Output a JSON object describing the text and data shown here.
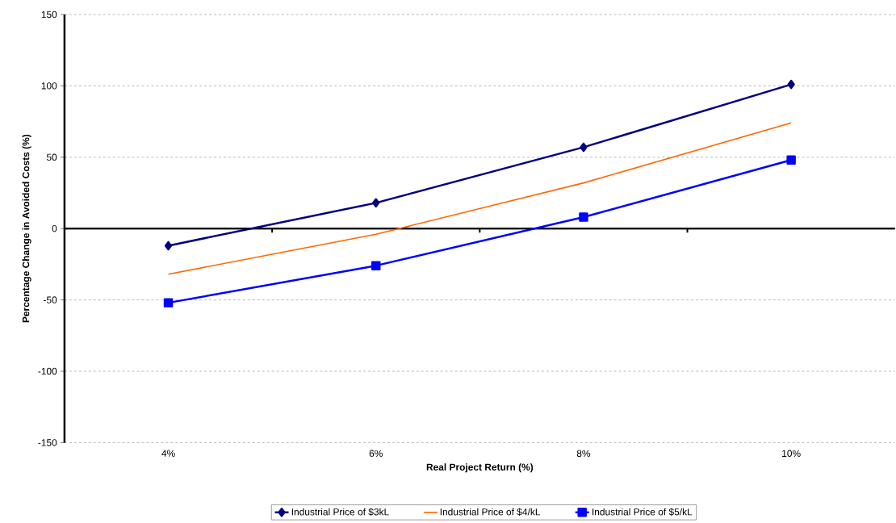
{
  "chart_data": {
    "type": "line",
    "xlabel": "Real Project Return (%)",
    "ylabel": "Percentage Change in Avoided Costs (%)",
    "categories": [
      "4%",
      "6%",
      "8%",
      "10%"
    ],
    "series": [
      {
        "name": "Industrial Price of $3kL",
        "color": "#000080",
        "marker": "diamond",
        "values": [
          -12,
          18,
          57,
          101
        ]
      },
      {
        "name": "Industrial Price of $4/kL",
        "color": "#ff6600",
        "marker": "none",
        "values": [
          -32,
          -4,
          32,
          74
        ]
      },
      {
        "name": "Industrial Price of $5/kL",
        "color": "#0000ff",
        "marker": "square",
        "values": [
          -52,
          -26,
          8,
          48
        ]
      }
    ],
    "ylim": [
      -150,
      150
    ],
    "yticks": [
      -150,
      -100,
      -50,
      0,
      50,
      100,
      150
    ],
    "grid": "y",
    "legend": "bottom",
    "line_style": "solid"
  }
}
